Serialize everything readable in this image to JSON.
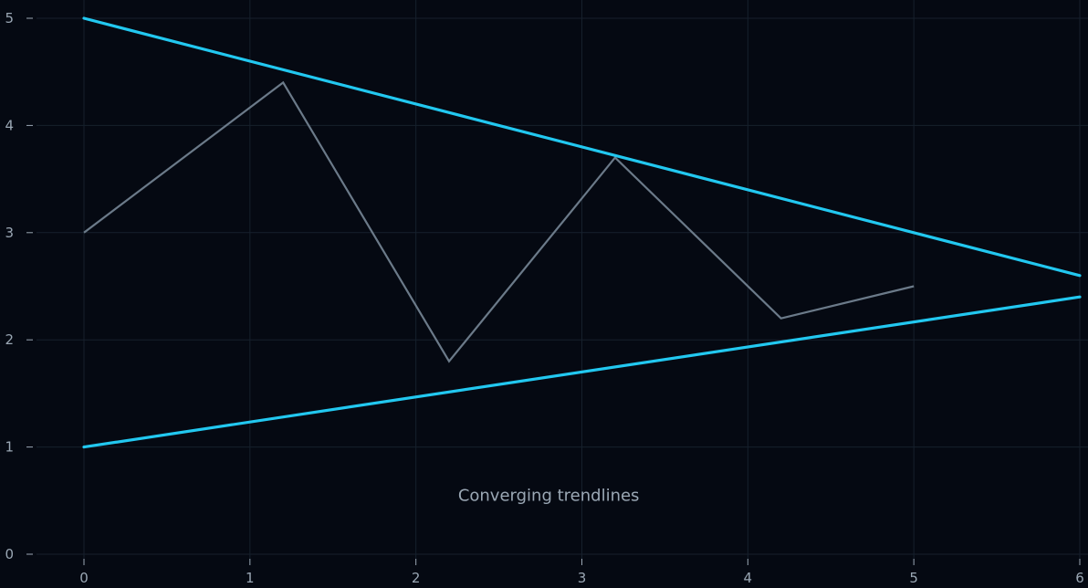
{
  "chart_data": {
    "type": "line",
    "title": "",
    "xlabel": "",
    "ylabel": "",
    "xlim": [
      0,
      6
    ],
    "ylim": [
      0,
      5
    ],
    "x_ticks": [
      0,
      1,
      2,
      3,
      4,
      5,
      6
    ],
    "y_ticks": [
      0,
      1,
      2,
      3,
      4,
      5
    ],
    "grid": true,
    "series": [
      {
        "role": "price",
        "color": "#6b7a89",
        "points": [
          [
            0,
            3.0
          ],
          [
            1.2,
            4.4
          ],
          [
            2.2,
            1.8
          ],
          [
            3.2,
            3.7
          ],
          [
            4.2,
            2.2
          ],
          [
            5.0,
            2.5
          ]
        ]
      },
      {
        "role": "upper-trendline",
        "color": "#22c8f0",
        "points": [
          [
            0,
            5.0
          ],
          [
            6,
            2.6
          ]
        ]
      },
      {
        "role": "lower-trendline",
        "color": "#22c8f0",
        "points": [
          [
            0,
            1.0
          ],
          [
            6,
            2.4
          ]
        ]
      }
    ],
    "annotations": [
      {
        "text": "Converging trendlines",
        "x": 2.8,
        "y": 0.55
      }
    ]
  }
}
